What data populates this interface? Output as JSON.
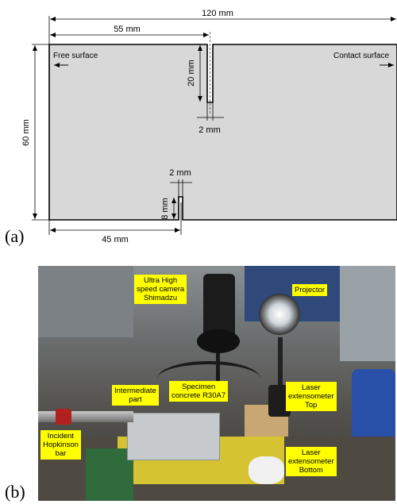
{
  "panel_a": {
    "label": "(a)",
    "dimensions": {
      "total_width": "120 mm",
      "top_notch_offset": "55 mm",
      "height": "60 mm",
      "top_notch_depth": "20 mm",
      "top_notch_width": "2 mm",
      "bottom_notch_width": "2 mm",
      "bottom_notch_depth": "8 mm",
      "bottom_notch_offset": "45 mm"
    },
    "labels": {
      "free_surface": "Free surface",
      "contact_surface": "Contact surface"
    },
    "colors": {
      "specimen_fill": "#d8d8d8"
    }
  },
  "panel_b": {
    "label": "(b)",
    "callouts": {
      "camera": "Ultra High\nspeed camera\nShimadzu",
      "projector": "Projector",
      "intermediate": "Intermediate\npart",
      "specimen": "Specimen\nconcrete R30A7",
      "laser_top": "Laser\nextensometer\nTop",
      "incident_bar": "Incident\nHopkinson\nbar",
      "laser_bottom": "Laser\nextensometer\nBottom"
    },
    "colors": {
      "callout_bg": "#ffff00"
    }
  }
}
